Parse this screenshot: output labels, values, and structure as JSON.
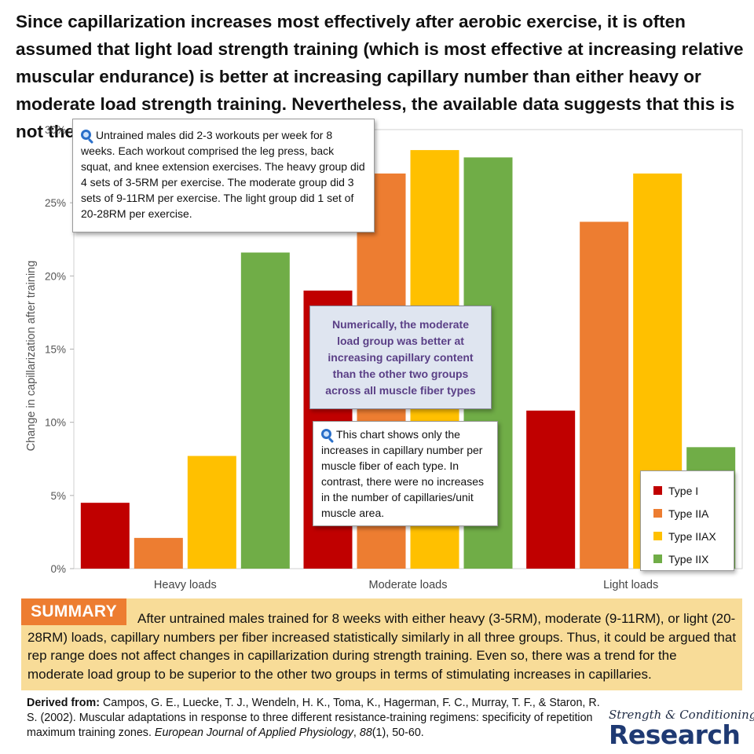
{
  "headline": "Since capillarization increases most effectively after aerobic exercise, it is often assumed that light load strength training (which is most effective at increasing relative muscular endurance) is better at increasing capillary number than either heavy or moderate load strength training. Nevertheless, the available data suggests that this is not the case.",
  "chart_data": {
    "type": "bar",
    "categories": [
      "Heavy loads",
      "Moderate loads",
      "Light loads"
    ],
    "series": [
      {
        "name": "Type I",
        "color": "#c00000",
        "values": [
          4.5,
          19.0,
          10.8
        ]
      },
      {
        "name": "Type IIA",
        "color": "#ed7d31",
        "values": [
          2.1,
          27.0,
          23.7
        ]
      },
      {
        "name": "Type IIAX",
        "color": "#ffc000",
        "values": [
          7.7,
          28.6,
          27.0
        ]
      },
      {
        "name": "Type IIX",
        "color": "#70ad47",
        "values": [
          21.6,
          28.1,
          8.3
        ]
      }
    ],
    "ylabel": "Change in capillarization after training",
    "ylim": [
      0,
      30
    ],
    "yticks": [
      0,
      5,
      10,
      15,
      20,
      25,
      30
    ],
    "ytick_labels": [
      "0%",
      "5%",
      "10%",
      "15%",
      "20%",
      "25%",
      "30%"
    ],
    "grid": false,
    "legend_position": "bottom-right"
  },
  "callouts": {
    "methods": "Untrained males did 2-3 workouts per week for 8 weeks. Each workout comprised the leg press, back squat, and knee extension exercises. The heavy group did 4 sets of 3-5RM per exercise. The moderate group did 3 sets of 9-11RM per exercise. The light group did 1 set of 20-28RM per exercise.",
    "highlight": "Numerically, the moderate load group was better at increasing capillary content than the other two groups across all muscle fiber types",
    "note": "This chart shows only the increases in capillary number per muscle fiber of each type. In contrast, there were no increases in the number of capillaries/unit muscle area."
  },
  "summary": {
    "label": "SUMMARY",
    "text": "After untrained males trained for 8 weeks with either heavy (3-5RM), moderate (9-11RM), or light (20-28RM) loads, capillary numbers per fiber increased statistically similarly in all three groups. Thus, it could be argued that rep range does not affect changes in capillarization during strength training. Even so, there was a trend for the moderate load group to be superior to the other two groups in terms of stimulating increases in capillaries."
  },
  "citation": {
    "label": "Derived from:",
    "text_before": "Campos, G. E., Luecke, T. J., Wendeln, H. K., Toma, K., Hagerman, F. C., Murray, T. F., & Staron, R. S. (2002). Muscular adaptations in response to three different resistance-training regimens: specificity of repetition maximum training zones.",
    "journal": "European Journal of Applied Physiology",
    "volume": "88",
    "issue": "(1), 50-60."
  },
  "brand": {
    "top": "Strength & Conditioning",
    "bottom": "Research"
  },
  "icons": {
    "magnifier": "magnifier-icon"
  }
}
